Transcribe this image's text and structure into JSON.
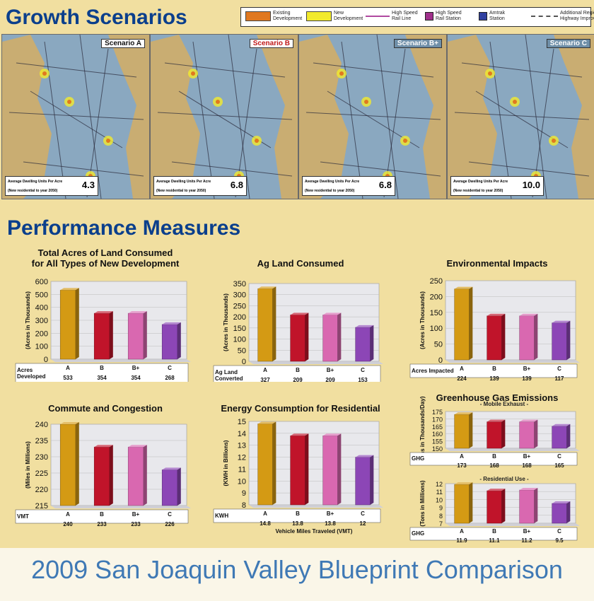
{
  "header": {
    "title": "Growth Scenarios"
  },
  "legend": [
    {
      "label": "Existing\nDevelopment",
      "color": "#e07820",
      "icon": "swatch"
    },
    {
      "label": "New\nDevelopment",
      "color": "#f2ea2c",
      "icon": "swatch"
    },
    {
      "label": "High Speed\nRail Line",
      "color": "#b04aa0",
      "icon": "line"
    },
    {
      "label": "High Speed\nRail Station",
      "color": "#a0308c",
      "icon": "station"
    },
    {
      "label": "Amtrak\nStation",
      "color": "#3040a0",
      "icon": "station"
    },
    {
      "label": "Additional Regional\nHighway Improvements",
      "color": "#555555",
      "icon": "dash"
    }
  ],
  "maps": [
    {
      "title": "Scenario A",
      "title_color": "#111111",
      "density": "4.3",
      "foot_label": "Average Dwelling Units Per Acre",
      "foot_note": "(New residential to year 2050)"
    },
    {
      "title": "Scenario B",
      "title_color": "#c01818",
      "density": "6.8",
      "foot_label": "Average Dwelling Units Per Acre",
      "foot_note": "(New residential to year 2050)"
    },
    {
      "title": "Scenario B+",
      "title_color": "#ffffff",
      "density": "6.8",
      "foot_label": "Average Dwelling Units Per Acre",
      "foot_note": "(New residential to year 2050)"
    },
    {
      "title": "Scenario C",
      "title_color": "#ffffff",
      "density": "10.0",
      "foot_label": "Average Dwelling Units Per Acre",
      "foot_note": "(New residential to year 2050)"
    }
  ],
  "section_title": "Performance Measures",
  "footer": {
    "title": "2009 San Joaquin Valley Blueprint Comparison"
  },
  "colors": {
    "A": "#d49a14",
    "B": "#c0142a",
    "Bplus": "#d968b0",
    "C": "#8c46b6"
  },
  "chart_data": [
    {
      "type": "bar",
      "title": "Total Acres of Land Consumed\nfor All Types of New Development",
      "categories": [
        "A",
        "B",
        "B+",
        "C"
      ],
      "values": [
        533,
        354,
        354,
        268
      ],
      "ylabel": "(Acres in Thousands)",
      "ylim": [
        0,
        600
      ],
      "yticks": [
        0,
        100,
        200,
        300,
        400,
        500,
        600
      ],
      "row_label": "Acres\nDeveloped",
      "value_labels": [
        "533",
        "354",
        "354",
        "268"
      ],
      "xlabel": ""
    },
    {
      "type": "bar",
      "title": "Ag Land Consumed",
      "categories": [
        "A",
        "B",
        "B+",
        "C"
      ],
      "values": [
        327,
        209,
        209,
        153
      ],
      "ylabel": "(Acres in Thousands)",
      "ylim": [
        0,
        350
      ],
      "yticks": [
        0,
        50,
        100,
        150,
        200,
        250,
        300,
        350
      ],
      "row_label": "Ag Land\nConverted",
      "value_labels": [
        "327",
        "209",
        "209",
        "153"
      ],
      "xlabel": ""
    },
    {
      "type": "bar",
      "title": "Environmental Impacts",
      "categories": [
        "A",
        "B",
        "B+",
        "C"
      ],
      "values": [
        224,
        139,
        139,
        117
      ],
      "ylabel": "(Acres in Thousands)",
      "ylim": [
        0,
        250
      ],
      "yticks": [
        0,
        50,
        100,
        150,
        200,
        250
      ],
      "row_label": "Acres Impacted",
      "value_labels": [
        "224",
        "139",
        "139",
        "117"
      ],
      "xlabel": ""
    },
    {
      "type": "bar",
      "title": "Commute and Congestion",
      "categories": [
        "A",
        "B",
        "B+",
        "C"
      ],
      "values": [
        240,
        233,
        233,
        226
      ],
      "ylabel": "(Miles in Millions)",
      "ylim": [
        215,
        240
      ],
      "yticks": [
        215,
        220,
        225,
        230,
        235,
        240
      ],
      "row_label": "VMT",
      "value_labels": [
        "240",
        "233",
        "233",
        "226"
      ],
      "xlabel": ""
    },
    {
      "type": "bar",
      "title": "Energy Consumption for Residential",
      "categories": [
        "A",
        "B",
        "B+",
        "C"
      ],
      "values": [
        14.8,
        13.8,
        13.8,
        12
      ],
      "ylabel": "(KWH in Billions)",
      "ylim": [
        8,
        15
      ],
      "yticks": [
        8,
        9,
        10,
        11,
        12,
        13,
        14,
        15
      ],
      "row_label": "KWH",
      "value_labels": [
        "14.8",
        "13.8",
        "13.8",
        "12"
      ],
      "xlabel": "Vehicle Miles Traveled (VMT)"
    },
    {
      "type": "bar",
      "title": "Greenhouse Gas Emissions",
      "subtitle": "- Mobile Exhaust -",
      "categories": [
        "A",
        "B",
        "B+",
        "C"
      ],
      "values": [
        173,
        168,
        168,
        165
      ],
      "ylabel": "(Tons in Thousands/Day)",
      "ylim": [
        150,
        175
      ],
      "yticks": [
        150,
        155,
        160,
        165,
        170,
        175
      ],
      "row_label": "GHG",
      "value_labels": [
        "173",
        "168",
        "168",
        "165"
      ],
      "xlabel": ""
    },
    {
      "type": "bar",
      "title": "",
      "subtitle": "- Residential Use -",
      "categories": [
        "A",
        "B",
        "B+",
        "C"
      ],
      "values": [
        11.9,
        11.1,
        11.2,
        9.5
      ],
      "ylabel": "(Tons in Millions)",
      "ylim": [
        7,
        12
      ],
      "yticks": [
        7,
        8,
        9,
        10,
        11,
        12
      ],
      "row_label": "GHG",
      "value_labels": [
        "11.9",
        "11.1",
        "11.2",
        "9.5"
      ],
      "xlabel": ""
    }
  ]
}
